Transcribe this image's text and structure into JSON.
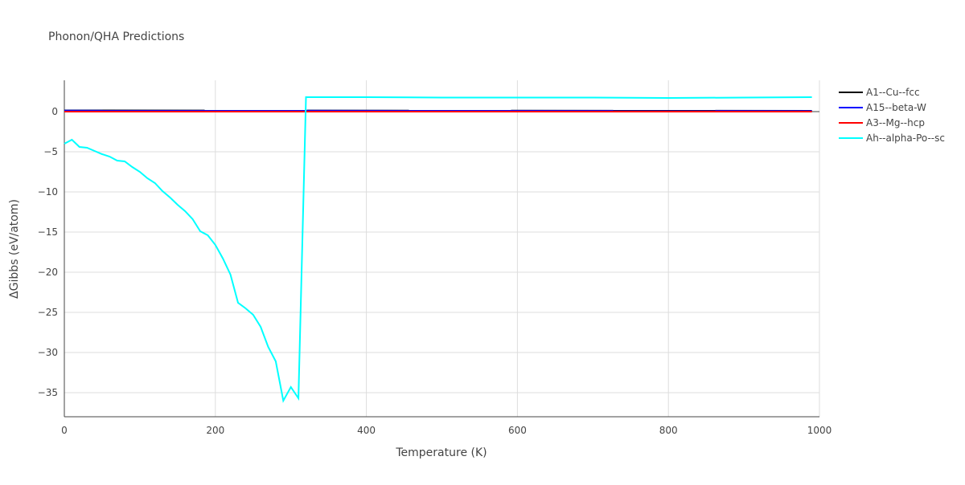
{
  "chart_data": {
    "type": "line",
    "title": "Phonon/QHA Predictions",
    "x_label": "Temperature (K)",
    "y_label": "ΔGibbs (eV/atom)",
    "xlim": [
      0,
      1000
    ],
    "ylim": [
      -38,
      3.9
    ],
    "xticks": [
      0,
      200,
      400,
      600,
      800,
      1000
    ],
    "yticks": [
      {
        "value": -35,
        "label": "−35"
      },
      {
        "value": -30,
        "label": "−30"
      },
      {
        "value": -25,
        "label": "−25"
      },
      {
        "value": -20,
        "label": "−20"
      },
      {
        "value": -15,
        "label": "−15"
      },
      {
        "value": -10,
        "label": "−10"
      },
      {
        "value": -5,
        "label": "−5"
      },
      0
    ],
    "grid": true,
    "legend": "top-right",
    "series": [
      {
        "name": "A1--Cu--fcc",
        "color": "#000000",
        "x": [
          0,
          990
        ],
        "values": [
          0.15,
          0.1
        ]
      },
      {
        "name": "A15--beta-W",
        "color": "#0000ff",
        "x": [
          0,
          990
        ],
        "values": [
          0.12,
          0.08
        ]
      },
      {
        "name": "A3--Mg--hcp",
        "color": "#ff0000",
        "x": [
          0,
          990
        ],
        "values": [
          0.0,
          0.0
        ]
      },
      {
        "name": "Ah--alpha-Po--sc",
        "color": "#00ffff",
        "x": [
          0,
          10,
          20,
          30,
          40,
          50,
          60,
          70,
          80,
          90,
          100,
          110,
          120,
          130,
          140,
          150,
          160,
          170,
          180,
          190,
          200,
          210,
          220,
          230,
          240,
          250,
          260,
          270,
          280,
          290,
          300,
          310,
          320,
          400,
          500,
          600,
          700,
          800,
          900,
          990
        ],
        "values": [
          -4.0,
          -3.5,
          -4.4,
          -4.5,
          -4.9,
          -5.3,
          -5.6,
          -6.1,
          -6.2,
          -6.9,
          -7.5,
          -8.3,
          -8.9,
          -9.9,
          -10.7,
          -11.6,
          -12.4,
          -13.4,
          -14.9,
          -15.4,
          -16.6,
          -18.3,
          -20.3,
          -23.8,
          -24.5,
          -25.3,
          -26.8,
          -29.3,
          -31.1,
          -36.0,
          -34.3,
          -35.7,
          1.8,
          1.8,
          1.75,
          1.75,
          1.75,
          1.7,
          1.75,
          1.8
        ]
      }
    ]
  }
}
